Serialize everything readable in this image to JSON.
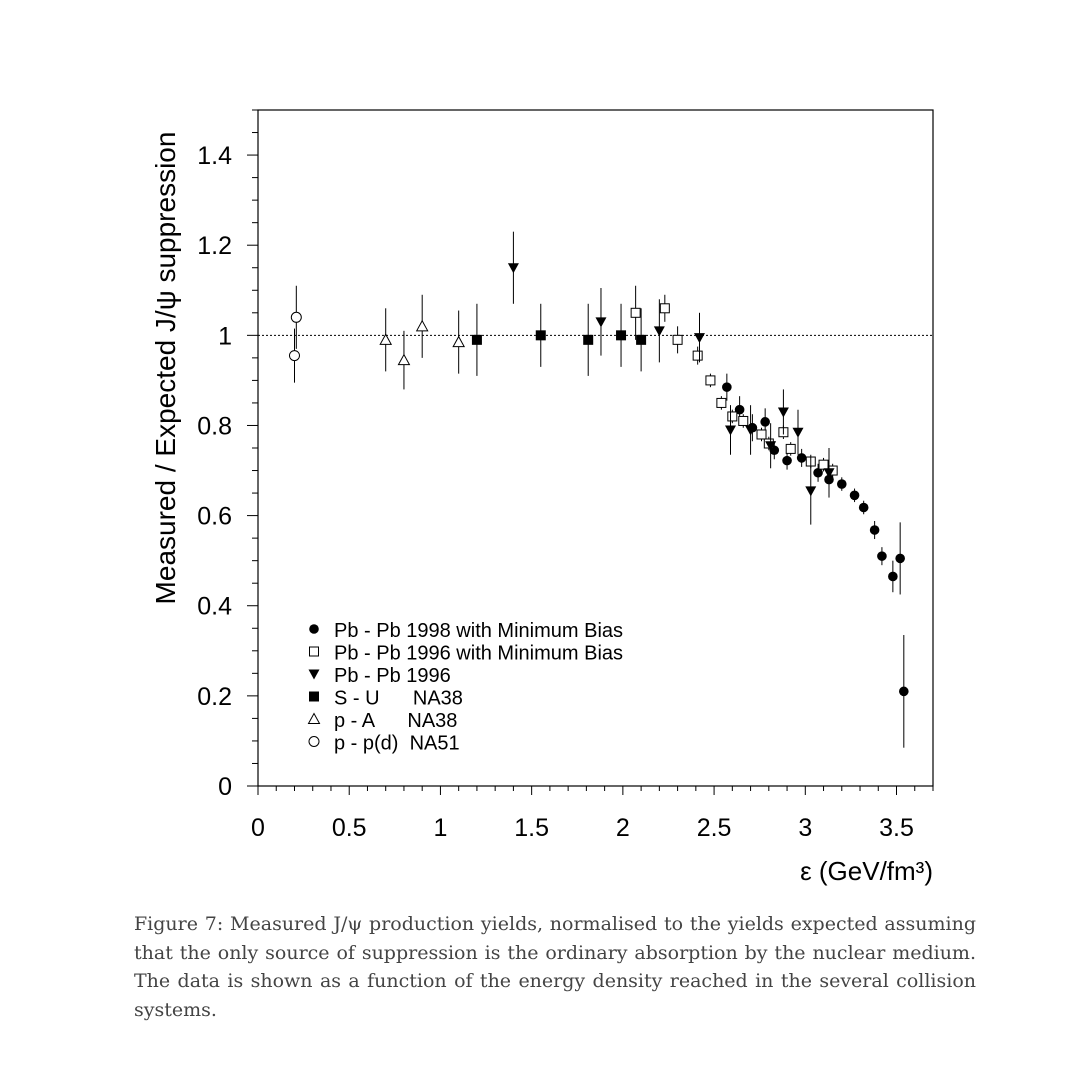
{
  "chart_data": {
    "type": "scatter",
    "xlabel": "ε  (GeV/fm³)",
    "ylabel": "Measured / Expected  J/ψ suppression",
    "xlim": [
      0,
      3.7
    ],
    "ylim": [
      0,
      1.5
    ],
    "x_ticks": [
      "0",
      "0.5",
      "1",
      "1.5",
      "2",
      "2.5",
      "3",
      "3.5"
    ],
    "y_ticks": [
      "0",
      "0.2",
      "0.4",
      "0.6",
      "0.8",
      "1",
      "1.2",
      "1.4"
    ],
    "reference_line": 1.0,
    "grid": false,
    "legend_position": "bottom-left",
    "series": [
      {
        "name": "Pb - Pb 1998 with Minimum Bias",
        "marker": "filled-circle",
        "points": [
          {
            "x": 2.57,
            "y": 0.885,
            "err": 0.03
          },
          {
            "x": 2.64,
            "y": 0.835,
            "err": 0.03
          },
          {
            "x": 2.71,
            "y": 0.795,
            "err": 0.03
          },
          {
            "x": 2.78,
            "y": 0.808,
            "err": 0.03
          },
          {
            "x": 2.83,
            "y": 0.745,
            "err": 0.02
          },
          {
            "x": 2.9,
            "y": 0.722,
            "err": 0.02
          },
          {
            "x": 2.98,
            "y": 0.728,
            "err": 0.02
          },
          {
            "x": 3.07,
            "y": 0.695,
            "err": 0.02
          },
          {
            "x": 3.13,
            "y": 0.68,
            "err": 0.02
          },
          {
            "x": 3.2,
            "y": 0.67,
            "err": 0.015
          },
          {
            "x": 3.27,
            "y": 0.645,
            "err": 0.015
          },
          {
            "x": 3.32,
            "y": 0.618,
            "err": 0.015
          },
          {
            "x": 3.38,
            "y": 0.568,
            "err": 0.02
          },
          {
            "x": 3.42,
            "y": 0.51,
            "err": 0.02
          },
          {
            "x": 3.48,
            "y": 0.465,
            "err": 0.035
          },
          {
            "x": 3.52,
            "y": 0.505,
            "err": 0.08
          },
          {
            "x": 3.54,
            "y": 0.21,
            "err": 0.125
          }
        ]
      },
      {
        "name": "Pb - Pb 1996 with Minimum Bias",
        "marker": "open-square",
        "points": [
          {
            "x": 2.07,
            "y": 1.05,
            "err": 0.06
          },
          {
            "x": 2.23,
            "y": 1.06,
            "err": 0.03
          },
          {
            "x": 2.3,
            "y": 0.99,
            "err": 0.03
          },
          {
            "x": 2.41,
            "y": 0.955,
            "err": 0.02
          },
          {
            "x": 2.48,
            "y": 0.9,
            "err": 0.015
          },
          {
            "x": 2.54,
            "y": 0.85,
            "err": 0.015
          },
          {
            "x": 2.6,
            "y": 0.82,
            "err": 0.015
          },
          {
            "x": 2.66,
            "y": 0.81,
            "err": 0.015
          },
          {
            "x": 2.76,
            "y": 0.78,
            "err": 0.015
          },
          {
            "x": 2.8,
            "y": 0.76,
            "err": 0.015
          },
          {
            "x": 2.88,
            "y": 0.785,
            "err": 0.015
          },
          {
            "x": 2.92,
            "y": 0.748,
            "err": 0.015
          },
          {
            "x": 3.03,
            "y": 0.72,
            "err": 0.015
          },
          {
            "x": 3.1,
            "y": 0.713,
            "err": 0.015
          },
          {
            "x": 3.15,
            "y": 0.7,
            "err": 0.015
          }
        ]
      },
      {
        "name": "Pb - Pb 1996",
        "marker": "filled-triangle-down",
        "points": [
          {
            "x": 1.4,
            "y": 1.15,
            "err": 0.08
          },
          {
            "x": 1.88,
            "y": 1.03,
            "err": 0.075
          },
          {
            "x": 2.2,
            "y": 1.01,
            "err": 0.07
          },
          {
            "x": 2.42,
            "y": 0.995,
            "err": 0.055
          },
          {
            "x": 2.59,
            "y": 0.79,
            "err": 0.055
          },
          {
            "x": 2.7,
            "y": 0.79,
            "err": 0.055
          },
          {
            "x": 2.81,
            "y": 0.755,
            "err": 0.05
          },
          {
            "x": 2.88,
            "y": 0.83,
            "err": 0.05
          },
          {
            "x": 2.96,
            "y": 0.785,
            "err": 0.05
          },
          {
            "x": 3.03,
            "y": 0.655,
            "err": 0.075
          },
          {
            "x": 3.13,
            "y": 0.695,
            "err": 0.055
          }
        ]
      },
      {
        "name": "S - U      NA38",
        "marker": "filled-square",
        "points": [
          {
            "x": 1.2,
            "y": 0.99,
            "err": 0.08
          },
          {
            "x": 1.55,
            "y": 1.0,
            "err": 0.07
          },
          {
            "x": 1.81,
            "y": 0.99,
            "err": 0.08
          },
          {
            "x": 1.99,
            "y": 1.0,
            "err": 0.07
          },
          {
            "x": 2.1,
            "y": 0.99,
            "err": 0.07
          }
        ]
      },
      {
        "name": "p - A      NA38",
        "marker": "open-triangle-up",
        "points": [
          {
            "x": 0.7,
            "y": 0.99,
            "err": 0.07
          },
          {
            "x": 0.8,
            "y": 0.945,
            "err": 0.065
          },
          {
            "x": 0.9,
            "y": 1.02,
            "err": 0.07
          },
          {
            "x": 1.1,
            "y": 0.985,
            "err": 0.07
          }
        ]
      },
      {
        "name": "p - p(d)  NA51",
        "marker": "open-circle",
        "points": [
          {
            "x": 0.2,
            "y": 0.955,
            "err": 0.06
          },
          {
            "x": 0.21,
            "y": 1.04,
            "err": 0.07
          }
        ]
      }
    ]
  },
  "caption": "Figure 7: Measured J/ψ production yields, normalised to the yields expected assuming that the only source of suppression is the ordinary absorption by the nuclear medium. The data is shown as a function of the energy density reached in the several collision systems."
}
